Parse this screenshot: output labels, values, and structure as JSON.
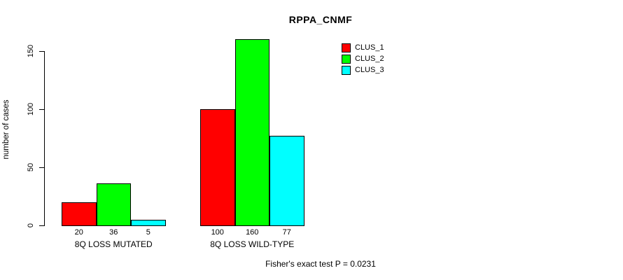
{
  "title": "RPPA_CNMF",
  "ylabel": "number of cases",
  "footer": "Fisher's exact test P = 0.0231",
  "chart_data": {
    "type": "bar",
    "title": "RPPA_CNMF",
    "xlabel": "",
    "ylabel": "number of cases",
    "categories": [
      "8Q LOSS MUTATED",
      "8Q LOSS WILD-TYPE"
    ],
    "series": [
      {
        "name": "CLUS_1",
        "color": "#ff0000",
        "values": [
          20,
          100
        ]
      },
      {
        "name": "CLUS_2",
        "color": "#00ff00",
        "values": [
          36,
          160
        ]
      },
      {
        "name": "CLUS_3",
        "color": "#00ffff",
        "values": [
          5,
          77
        ]
      }
    ],
    "bar_labels": [
      [
        "20",
        "36",
        "5"
      ],
      [
        "100",
        "160",
        "77"
      ]
    ],
    "yticks": [
      0,
      50,
      100,
      150
    ],
    "ylim": [
      0,
      166
    ],
    "grid": false,
    "legend_position": "top-right",
    "annotation": "Fisher's exact test P = 0.0231"
  }
}
